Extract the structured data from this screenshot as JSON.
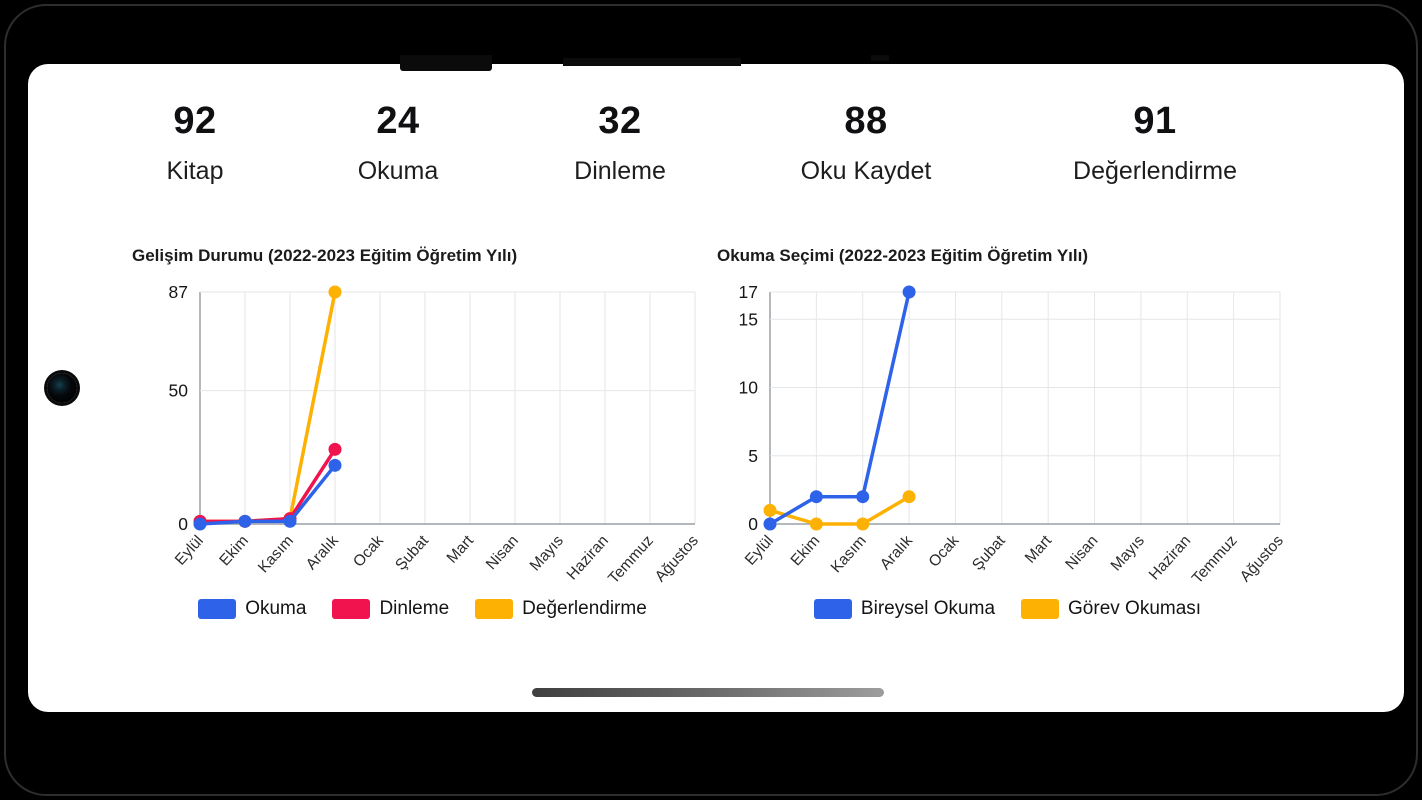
{
  "stats": [
    {
      "value": "92",
      "label": "Kitap"
    },
    {
      "value": "24",
      "label": "Okuma"
    },
    {
      "value": "32",
      "label": "Dinleme"
    },
    {
      "value": "88",
      "label": "Oku Kaydet"
    },
    {
      "value": "91",
      "label": "Değerlendirme"
    }
  ],
  "chart_data": [
    {
      "type": "line",
      "title": "Gelişim Durumu (2022-2023 Eğitim Öğretim Yılı)",
      "categories": [
        "Eylül",
        "Ekim",
        "Kasım",
        "Aralık",
        "Ocak",
        "Şubat",
        "Mart",
        "Nisan",
        "Mayıs",
        "Haziran",
        "Temmuz",
        "Ağustos"
      ],
      "ylim": [
        0,
        87
      ],
      "y_ticks": [
        0,
        50,
        87
      ],
      "grid": true,
      "legend_position": "bottom",
      "series": [
        {
          "name": "Okuma",
          "color": "#2e63e9",
          "values": [
            0,
            1,
            1,
            22,
            null,
            null,
            null,
            null,
            null,
            null,
            null,
            null
          ]
        },
        {
          "name": "Dinleme",
          "color": "#f0134d",
          "values": [
            1,
            1,
            2,
            28,
            null,
            null,
            null,
            null,
            null,
            null,
            null,
            null
          ]
        },
        {
          "name": "Değerlendirme",
          "color": "#fcb103",
          "values": [
            1,
            1,
            2,
            87,
            null,
            null,
            null,
            null,
            null,
            null,
            null,
            null
          ]
        }
      ]
    },
    {
      "type": "line",
      "title": "Okuma Seçimi (2022-2023 Eğitim Öğretim Yılı)",
      "categories": [
        "Eylül",
        "Ekim",
        "Kasım",
        "Aralık",
        "Ocak",
        "Şubat",
        "Mart",
        "Nisan",
        "Mayıs",
        "Haziran",
        "Temmuz",
        "Ağustos"
      ],
      "ylim": [
        0,
        17
      ],
      "y_ticks": [
        0,
        5,
        10,
        15,
        17
      ],
      "grid": true,
      "legend_position": "bottom",
      "series": [
        {
          "name": "Bireysel Okuma",
          "color": "#2e63e9",
          "values": [
            0,
            2,
            2,
            17,
            null,
            null,
            null,
            null,
            null,
            null,
            null,
            null
          ]
        },
        {
          "name": "Görev Okuması",
          "color": "#fcb103",
          "values": [
            1,
            0,
            0,
            2,
            null,
            null,
            null,
            null,
            null,
            null,
            null,
            null
          ]
        }
      ]
    }
  ]
}
